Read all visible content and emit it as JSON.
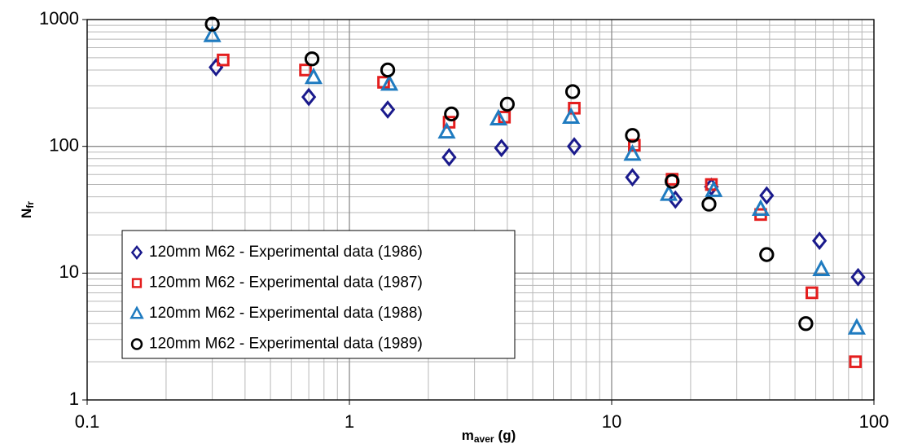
{
  "chart_data": {
    "type": "scatter",
    "x_label": "m",
    "x_label_sub": "aver",
    "x_label_unit": "(g)",
    "y_label": "N",
    "y_label_sub": "fr",
    "log_x": true,
    "log_y": true,
    "grid": true,
    "minor_grid": true,
    "legend": "lower-left",
    "xlim": [
      0.1,
      100
    ],
    "xticks": [
      0.1,
      1,
      10,
      100
    ],
    "ylim": [
      1,
      1000
    ],
    "yticks": [
      1,
      10,
      100,
      1000
    ],
    "series": [
      {
        "name": "120mm M62 - Experimental data (1986)",
        "color": "#1a1a8c",
        "marker": "diamond",
        "x": [
          0.31,
          0.7,
          1.4,
          2.4,
          3.8,
          7.2,
          12,
          17.5,
          24,
          39,
          62,
          87
        ],
        "values": [
          420,
          245,
          195,
          82,
          97,
          100,
          57,
          38,
          48,
          41,
          18,
          9.3
        ]
      },
      {
        "name": "120mm M62 - Experimental data (1987)",
        "color": "#e41e1e",
        "marker": "square",
        "x": [
          0.33,
          0.68,
          1.35,
          2.4,
          3.9,
          7.2,
          12.2,
          17,
          24,
          37,
          58,
          85
        ],
        "values": [
          480,
          400,
          320,
          155,
          170,
          200,
          102,
          55,
          50,
          29,
          7,
          2
        ]
      },
      {
        "name": "120mm M62 - Experimental data (1988)",
        "color": "#1f7bc0",
        "marker": "triangle",
        "x": [
          0.3,
          0.73,
          1.42,
          2.35,
          3.7,
          7,
          12,
          16.5,
          24.5,
          37,
          63,
          86
        ],
        "values": [
          750,
          350,
          310,
          130,
          165,
          170,
          87,
          42,
          45,
          32,
          10.7,
          3.7
        ]
      },
      {
        "name": "120mm M62 - Experimental data (1989)",
        "color": "#000000",
        "marker": "circle",
        "x": [
          0.3,
          0.72,
          1.4,
          2.45,
          4,
          7.1,
          12,
          17,
          23.5,
          39,
          55
        ],
        "values": [
          920,
          490,
          400,
          180,
          215,
          270,
          122,
          53,
          35,
          14,
          4
        ]
      }
    ]
  }
}
